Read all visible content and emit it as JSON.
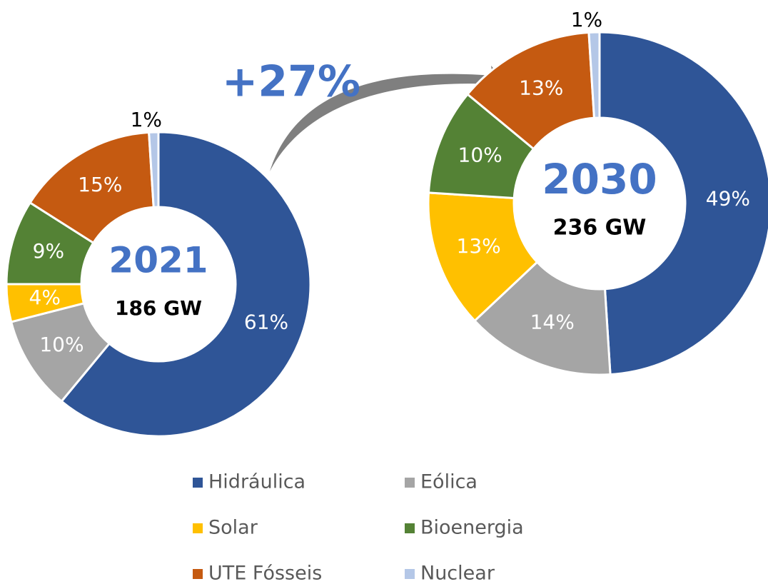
{
  "chart_data": {
    "type": "donut",
    "annotation": "+27%",
    "categories": [
      "Hidráulica",
      "Eólica",
      "Solar",
      "Bioenergia",
      "UTE Fósseis",
      "Nuclear"
    ],
    "colors": [
      "#2f5597",
      "#a5a5a5",
      "#ffc000",
      "#548235",
      "#c55a11",
      "#b4c7e7"
    ],
    "series": [
      {
        "name": "2021",
        "subtitle": "186 GW",
        "values": [
          61,
          10,
          4,
          9,
          15,
          1
        ],
        "value_labels": [
          "61%",
          "10%",
          "4%",
          "9%",
          "15%",
          "1%"
        ]
      },
      {
        "name": "2030",
        "subtitle": "236 GW",
        "values": [
          49,
          14,
          13,
          10,
          13,
          1
        ],
        "value_labels": [
          "49%",
          "14%",
          "13%",
          "10%",
          "13%",
          "1%"
        ]
      }
    ]
  }
}
